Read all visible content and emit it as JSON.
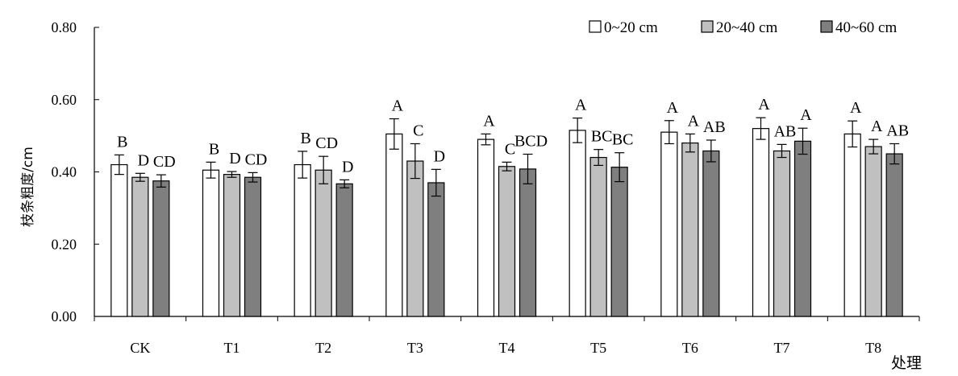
{
  "chart_data": {
    "type": "bar",
    "title": "",
    "xlabel": "处理",
    "ylabel": "枝条粗度/cm",
    "ylim": [
      0,
      0.8
    ],
    "yticks": [
      "0.00",
      "0.20",
      "0.40",
      "0.60",
      "0.80"
    ],
    "categories": [
      "CK",
      "T1",
      "T2",
      "T3",
      "T4",
      "T5",
      "T6",
      "T7",
      "T8"
    ],
    "legend_position": "top-right",
    "series": [
      {
        "name": "0~20 cm",
        "color": "#ffffff",
        "values": [
          0.42,
          0.405,
          0.42,
          0.505,
          0.49,
          0.515,
          0.51,
          0.52,
          0.505
        ],
        "errors": [
          0.027,
          0.022,
          0.037,
          0.042,
          0.015,
          0.034,
          0.032,
          0.03,
          0.036
        ],
        "labels": [
          "B",
          "B",
          "B",
          "A",
          "A",
          "A",
          "A",
          "A",
          "A"
        ]
      },
      {
        "name": "20~40 cm",
        "color": "#c0c0c0",
        "values": [
          0.385,
          0.393,
          0.405,
          0.43,
          0.415,
          0.44,
          0.48,
          0.458,
          0.47
        ],
        "errors": [
          0.011,
          0.008,
          0.038,
          0.048,
          0.012,
          0.022,
          0.025,
          0.018,
          0.02
        ],
        "labels": [
          "D",
          "D",
          "CD",
          "C",
          "C",
          "BC",
          "A",
          "AB",
          "A"
        ]
      },
      {
        "name": "40~60 cm",
        "color": "#7f7f7f",
        "values": [
          0.375,
          0.385,
          0.367,
          0.37,
          0.408,
          0.413,
          0.458,
          0.485,
          0.45
        ],
        "errors": [
          0.017,
          0.013,
          0.011,
          0.037,
          0.041,
          0.04,
          0.03,
          0.036,
          0.028
        ],
        "labels": [
          "CD",
          "CD",
          "D",
          "D",
          "BCD",
          "BC",
          "AB",
          "A",
          "AB"
        ]
      }
    ]
  }
}
